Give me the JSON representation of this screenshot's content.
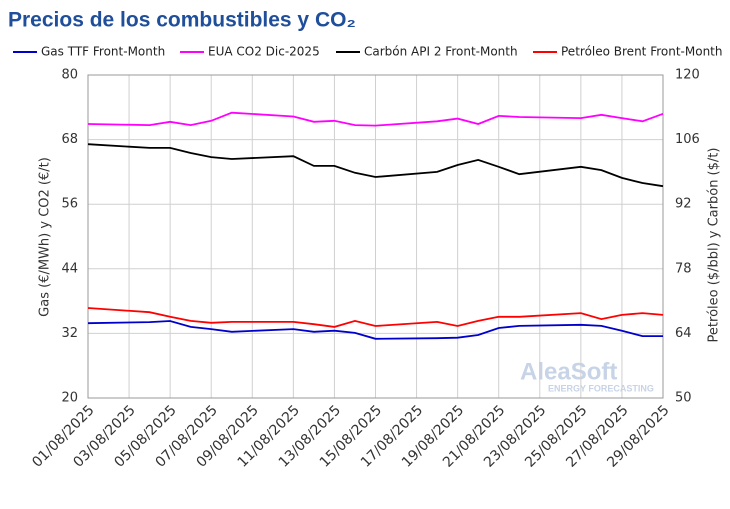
{
  "chart_data": {
    "type": "line",
    "title": "Precios de los combustibles y CO₂",
    "y_label": "Gas (€/MWh) y CO2 (€/t)",
    "y2_label": "Petróleo ($/bbl) y Carbón ($/t)",
    "watermark": "AleaSoft",
    "watermark_sub": "ENERGY FORECASTING",
    "x": [
      "01/08/2025",
      "04/08/2025",
      "05/08/2025",
      "06/08/2025",
      "07/08/2025",
      "08/08/2025",
      "11/08/2025",
      "12/08/2025",
      "13/08/2025",
      "14/08/2025",
      "15/08/2025",
      "18/08/2025",
      "19/08/2025",
      "20/08/2025",
      "21/08/2025",
      "22/08/2025",
      "25/08/2025",
      "26/08/2025",
      "27/08/2025",
      "28/08/2025",
      "29/08/2025"
    ],
    "xlim": [
      "01/08/2025",
      "29/08/2025"
    ],
    "xticks": [
      "01/08/2025",
      "03/08/2025",
      "05/08/2025",
      "07/08/2025",
      "09/08/2025",
      "11/08/2025",
      "13/08/2025",
      "15/08/2025",
      "17/08/2025",
      "19/08/2025",
      "21/08/2025",
      "23/08/2025",
      "25/08/2025",
      "27/08/2025",
      "29/08/2025"
    ],
    "ylim": [
      20,
      80
    ],
    "yticks": [
      20,
      32,
      44,
      56,
      68,
      80
    ],
    "y2lim": [
      50,
      120
    ],
    "y2ticks": [
      50,
      64,
      78,
      92,
      106,
      120
    ],
    "grid": true,
    "series": [
      {
        "name": "Gas TTF Front-Month",
        "color": "#0000cc",
        "values": [
          33.9,
          34.1,
          34.3,
          33.2,
          32.8,
          32.3,
          32.8,
          32.3,
          32.5,
          32.1,
          31.0,
          31.1,
          31.2,
          31.7,
          33.0,
          33.4,
          33.6,
          33.4,
          32.5,
          31.5,
          31.5
        ]
      },
      {
        "name": "EUA CO2 Dic-2025",
        "color": "#ff00ff",
        "values": [
          70.9,
          70.7,
          71.3,
          70.7,
          71.5,
          73.0,
          72.3,
          71.3,
          71.5,
          70.7,
          70.6,
          71.4,
          71.9,
          70.9,
          72.4,
          72.2,
          72.0,
          72.6,
          72.0,
          71.4,
          72.8
        ]
      },
      {
        "name": "Carbón API 2 Front-Month",
        "color": "#000000",
        "axis": "y2",
        "values": [
          105.0,
          104.2,
          104.2,
          103.1,
          102.2,
          101.8,
          102.4,
          100.3,
          100.3,
          98.8,
          97.9,
          99.0,
          100.5,
          101.6,
          100.1,
          98.5,
          100.1,
          99.4,
          97.7,
          96.6,
          95.9
        ]
      },
      {
        "name": "Petróleo Brent Front-Month",
        "color": "#ff0000",
        "axis": "y2",
        "values": [
          69.5,
          68.6,
          67.6,
          66.7,
          66.3,
          66.5,
          66.5,
          66.0,
          65.4,
          66.7,
          65.6,
          66.5,
          65.6,
          66.7,
          67.6,
          67.6,
          68.4,
          67.1,
          68.0,
          68.4,
          68.0
        ]
      }
    ]
  }
}
